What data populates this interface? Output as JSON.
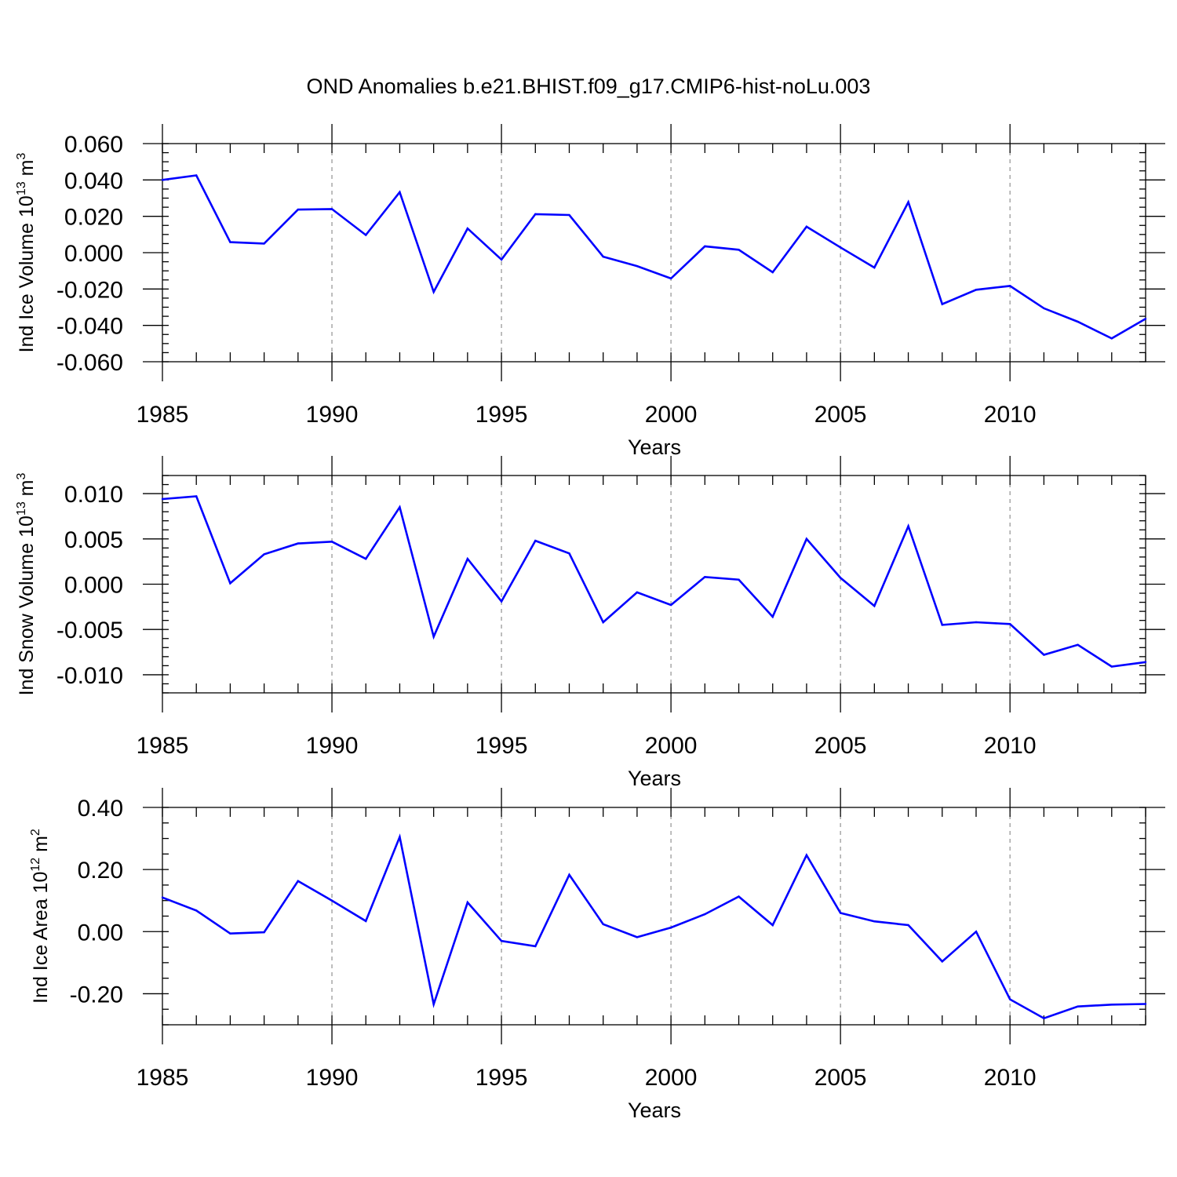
{
  "title": "OND Anomalies b.e21.BHIST.f09_g17.CMIP6-hist-noLu.003",
  "colors": {
    "series": "#0000ff",
    "grid": "#9a9a9a",
    "axis": "#000000"
  },
  "chart_data": [
    {
      "type": "line",
      "xlabel": "Years",
      "ylabel": {
        "main": "Ind Ice Volume 10",
        "exp": "13",
        "unit": " m",
        "unit_exp": "3"
      },
      "xlim": [
        1985,
        2014
      ],
      "ylim": [
        -0.06,
        0.06
      ],
      "xticks": [
        1985,
        1990,
        1995,
        2000,
        2005,
        2010
      ],
      "xtick_labels": [
        "1985",
        "1990",
        "1995",
        "2000",
        "2005",
        "2010"
      ],
      "yticks": [
        0.06,
        0.04,
        0.02,
        0.0,
        -0.02,
        -0.04,
        -0.06
      ],
      "ytick_labels": [
        "0.060",
        "0.040",
        "0.020",
        "0.000",
        "-0.020",
        "-0.040",
        "-0.060"
      ],
      "grid": "vertical dashed at major x ticks",
      "x": [
        1985,
        1986,
        1987,
        1988,
        1989,
        1990,
        1991,
        1992,
        1993,
        1994,
        1995,
        1996,
        1997,
        1998,
        1999,
        2000,
        2001,
        2002,
        2003,
        2004,
        2005,
        2006,
        2007,
        2008,
        2009,
        2010,
        2011,
        2012,
        2013,
        2014
      ],
      "values": [
        0.04,
        0.0425,
        0.0058,
        0.005,
        0.0237,
        0.024,
        0.0097,
        0.0333,
        -0.0216,
        0.0133,
        -0.0038,
        0.0212,
        0.0207,
        -0.0022,
        -0.0074,
        -0.0142,
        0.0035,
        0.0016,
        -0.0108,
        0.0143,
        0.0029,
        -0.0082,
        0.0278,
        -0.0283,
        -0.0204,
        -0.0183,
        -0.0306,
        -0.038,
        -0.0472,
        -0.0364
      ]
    },
    {
      "type": "line",
      "xlabel": "Years",
      "ylabel": {
        "main": "Ind Snow Volume 10",
        "exp": "13",
        "unit": " m",
        "unit_exp": "3"
      },
      "xlim": [
        1985,
        2014
      ],
      "ylim": [
        -0.012,
        0.012
      ],
      "xticks": [
        1985,
        1990,
        1995,
        2000,
        2005,
        2010
      ],
      "xtick_labels": [
        "1985",
        "1990",
        "1995",
        "2000",
        "2005",
        "2010"
      ],
      "yticks": [
        0.01,
        0.005,
        0.0,
        -0.005,
        -0.01
      ],
      "ytick_labels": [
        "0.010",
        "0.005",
        "0.000",
        "-0.005",
        "-0.010"
      ],
      "grid": "vertical dashed at major x ticks",
      "x": [
        1985,
        1986,
        1987,
        1988,
        1989,
        1990,
        1991,
        1992,
        1993,
        1994,
        1995,
        1996,
        1997,
        1998,
        1999,
        2000,
        2001,
        2002,
        2003,
        2004,
        2005,
        2006,
        2007,
        2008,
        2009,
        2010,
        2011,
        2012,
        2013,
        2014
      ],
      "values": [
        0.0094,
        0.0097,
        0.0001,
        0.0033,
        0.0045,
        0.0047,
        0.0028,
        0.0085,
        -0.0058,
        0.0028,
        -0.0019,
        0.0048,
        0.0034,
        -0.0042,
        -0.0009,
        -0.0023,
        0.0008,
        0.0005,
        -0.0036,
        0.005,
        0.0007,
        -0.0024,
        0.0064,
        -0.0045,
        -0.0042,
        -0.0044,
        -0.0078,
        -0.0067,
        -0.0091,
        -0.0086
      ]
    },
    {
      "type": "line",
      "xlabel": "Years",
      "ylabel": {
        "main": "Ind Ice Area 10",
        "exp": "12",
        "unit": " m",
        "unit_exp": "2"
      },
      "xlim": [
        1985,
        2014
      ],
      "ylim": [
        -0.3,
        0.4
      ],
      "xticks": [
        1985,
        1990,
        1995,
        2000,
        2005,
        2010
      ],
      "xtick_labels": [
        "1985",
        "1990",
        "1995",
        "2000",
        "2005",
        "2010"
      ],
      "yticks": [
        0.4,
        0.2,
        0.0,
        -0.2
      ],
      "ytick_labels": [
        "0.40",
        "0.20",
        "0.00",
        "-0.20"
      ],
      "grid": "vertical dashed at major x ticks",
      "x": [
        1985,
        1986,
        1987,
        1988,
        1989,
        1990,
        1991,
        1992,
        1993,
        1994,
        1995,
        1996,
        1997,
        1998,
        1999,
        2000,
        2001,
        2002,
        2003,
        2004,
        2005,
        2006,
        2007,
        2008,
        2009,
        2010,
        2011,
        2012,
        2013,
        2014
      ],
      "values": [
        0.11,
        0.068,
        -0.006,
        -0.002,
        0.163,
        0.1,
        0.034,
        0.305,
        -0.234,
        0.094,
        -0.03,
        -0.047,
        0.183,
        0.024,
        -0.018,
        0.013,
        0.056,
        0.113,
        0.021,
        0.246,
        0.06,
        0.033,
        0.021,
        -0.096,
        0.0,
        -0.218,
        -0.279,
        -0.241,
        -0.235,
        -0.233
      ]
    }
  ]
}
